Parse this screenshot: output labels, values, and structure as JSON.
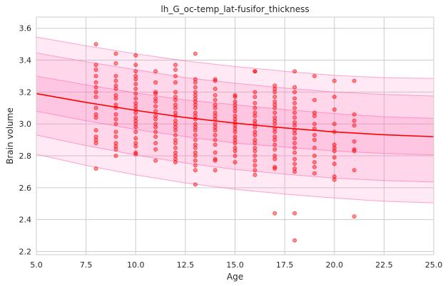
{
  "chart_data": {
    "type": "scatter",
    "title": "lh_G_oc-temp_lat-fusifor_thickness",
    "xlabel": "Age",
    "ylabel": "Brain volume",
    "xlim": [
      5.0,
      25.0
    ],
    "ylim": [
      2.18,
      3.67
    ],
    "xticks": [
      5.0,
      7.5,
      10.0,
      12.5,
      15.0,
      17.5,
      20.0,
      22.5,
      25.0
    ],
    "xtick_labels": [
      "5.0",
      "7.5",
      "10.0",
      "12.5",
      "15.0",
      "17.5",
      "20.0",
      "22.5",
      "25.0"
    ],
    "yticks": [
      2.2,
      2.4,
      2.6,
      2.8,
      3.0,
      3.2,
      3.4,
      3.6
    ],
    "ytick_labels": [
      "2.2",
      "2.4",
      "2.6",
      "2.8",
      "3.0",
      "3.2",
      "3.4",
      "3.6"
    ],
    "grid": true,
    "colors": {
      "points": "#ff0000",
      "trend": "#ff0000",
      "band_fill": "#ff69b4",
      "band_edge": "#ff69b4",
      "background": "#ffffff",
      "grid": "#cccccc"
    },
    "trend": {
      "x": [
        5,
        7.5,
        10,
        12.5,
        15,
        17.5,
        20,
        22.5,
        25
      ],
      "y": [
        3.19,
        3.135,
        3.085,
        3.04,
        3.005,
        2.975,
        2.95,
        2.932,
        2.92
      ]
    },
    "bands": [
      {
        "level": "outer",
        "lower": [
          2.81,
          2.74,
          2.68,
          2.63,
          2.59,
          2.56,
          2.535,
          2.515,
          2.505
        ],
        "upper": [
          3.545,
          3.49,
          3.44,
          3.395,
          3.36,
          3.33,
          3.305,
          3.29,
          3.285
        ]
      },
      {
        "level": "middle",
        "lower": [
          2.93,
          2.865,
          2.805,
          2.755,
          2.715,
          2.685,
          2.66,
          2.645,
          2.635
        ],
        "upper": [
          3.445,
          3.39,
          3.34,
          3.29,
          3.255,
          3.225,
          3.2,
          3.185,
          3.175
        ]
      },
      {
        "level": "inner",
        "lower": [
          3.08,
          3.02,
          2.965,
          2.92,
          2.88,
          2.855,
          2.83,
          2.815,
          2.805
        ],
        "upper": [
          3.3,
          3.245,
          3.195,
          3.15,
          3.12,
          3.09,
          3.065,
          3.045,
          3.035
        ]
      }
    ],
    "points": [
      [
        8,
        3.5
      ],
      [
        8,
        3.37
      ],
      [
        8,
        3.34
      ],
      [
        8,
        3.3
      ],
      [
        8,
        3.26
      ],
      [
        8,
        3.23
      ],
      [
        8,
        3.2
      ],
      [
        8,
        3.17
      ],
      [
        8,
        3.1
      ],
      [
        8,
        3.06
      ],
      [
        8,
        3.04
      ],
      [
        8,
        2.96
      ],
      [
        8,
        2.92
      ],
      [
        8,
        2.9
      ],
      [
        8,
        2.88
      ],
      [
        8,
        2.72
      ],
      [
        9,
        3.44
      ],
      [
        9,
        3.38
      ],
      [
        9,
        3.3
      ],
      [
        9,
        3.27
      ],
      [
        9,
        3.24
      ],
      [
        9,
        3.22
      ],
      [
        9,
        3.18
      ],
      [
        9,
        3.16
      ],
      [
        9,
        3.12
      ],
      [
        9,
        3.1
      ],
      [
        9,
        3.06
      ],
      [
        9,
        3.03
      ],
      [
        9,
        3.0
      ],
      [
        9,
        2.95
      ],
      [
        9,
        2.92
      ],
      [
        9,
        2.88
      ],
      [
        9,
        2.86
      ],
      [
        9,
        2.84
      ],
      [
        9,
        2.8
      ],
      [
        10,
        3.43
      ],
      [
        10,
        3.37
      ],
      [
        10,
        3.33
      ],
      [
        10,
        3.3
      ],
      [
        10,
        3.28
      ],
      [
        10,
        3.25
      ],
      [
        10,
        3.22
      ],
      [
        10,
        3.19
      ],
      [
        10,
        3.16
      ],
      [
        10,
        3.13
      ],
      [
        10,
        3.11
      ],
      [
        10,
        3.09
      ],
      [
        10,
        3.07
      ],
      [
        10,
        3.04
      ],
      [
        10,
        3.02
      ],
      [
        10,
        3.0
      ],
      [
        10,
        2.98
      ],
      [
        10,
        2.95
      ],
      [
        10,
        2.91
      ],
      [
        10,
        2.88
      ],
      [
        10,
        2.86
      ],
      [
        10,
        2.82
      ],
      [
        10,
        2.81
      ],
      [
        11,
        3.33
      ],
      [
        11,
        3.26
      ],
      [
        11,
        3.2
      ],
      [
        11,
        3.19
      ],
      [
        11,
        3.16
      ],
      [
        11,
        3.14
      ],
      [
        11,
        3.11
      ],
      [
        11,
        3.08
      ],
      [
        11,
        3.05
      ],
      [
        11,
        3.03
      ],
      [
        11,
        3.0
      ],
      [
        11,
        2.98
      ],
      [
        11,
        2.95
      ],
      [
        11,
        2.92
      ],
      [
        11,
        2.88
      ],
      [
        11,
        2.84
      ],
      [
        11,
        2.77
      ],
      [
        12,
        3.37
      ],
      [
        12,
        3.34
      ],
      [
        12,
        3.3
      ],
      [
        12,
        3.26
      ],
      [
        12,
        3.2
      ],
      [
        12,
        3.17
      ],
      [
        12,
        3.15
      ],
      [
        12,
        3.12
      ],
      [
        12,
        3.1
      ],
      [
        12,
        3.07
      ],
      [
        12,
        3.05
      ],
      [
        12,
        3.02
      ],
      [
        12,
        3.0
      ],
      [
        12,
        2.98
      ],
      [
        12,
        2.96
      ],
      [
        12,
        2.93
      ],
      [
        12,
        2.9
      ],
      [
        12,
        2.88
      ],
      [
        12,
        2.85
      ],
      [
        12,
        2.82
      ],
      [
        12,
        2.8
      ],
      [
        12,
        2.78
      ],
      [
        12,
        2.76
      ],
      [
        13,
        3.44
      ],
      [
        13,
        3.28
      ],
      [
        13,
        3.26
      ],
      [
        13,
        3.23
      ],
      [
        13,
        3.2
      ],
      [
        13,
        3.18
      ],
      [
        13,
        3.16
      ],
      [
        13,
        3.14
      ],
      [
        13,
        3.12
      ],
      [
        13,
        3.1
      ],
      [
        13,
        3.07
      ],
      [
        13,
        3.05
      ],
      [
        13,
        3.03
      ],
      [
        13,
        3.0
      ],
      [
        13,
        2.98
      ],
      [
        13,
        2.96
      ],
      [
        13,
        2.93
      ],
      [
        13,
        2.9
      ],
      [
        13,
        2.87
      ],
      [
        13,
        2.85
      ],
      [
        13,
        2.82
      ],
      [
        13,
        2.8
      ],
      [
        13,
        2.77
      ],
      [
        13,
        2.74
      ],
      [
        13,
        2.71
      ],
      [
        13,
        2.62
      ],
      [
        14,
        3.28
      ],
      [
        14,
        3.27
      ],
      [
        14,
        3.22
      ],
      [
        14,
        3.18
      ],
      [
        14,
        3.15
      ],
      [
        14,
        3.12
      ],
      [
        14,
        3.1
      ],
      [
        14,
        3.07
      ],
      [
        14,
        3.05
      ],
      [
        14,
        3.03
      ],
      [
        14,
        3.0
      ],
      [
        14,
        2.98
      ],
      [
        14,
        2.96
      ],
      [
        14,
        2.93
      ],
      [
        14,
        2.9
      ],
      [
        14,
        2.87
      ],
      [
        14,
        2.82
      ],
      [
        14,
        2.78
      ],
      [
        14,
        2.77
      ],
      [
        14,
        2.71
      ],
      [
        15,
        3.18
      ],
      [
        15,
        3.17
      ],
      [
        15,
        3.14
      ],
      [
        15,
        3.12
      ],
      [
        15,
        3.1
      ],
      [
        15,
        3.08
      ],
      [
        15,
        3.05
      ],
      [
        15,
        3.03
      ],
      [
        15,
        3.01
      ],
      [
        15,
        2.99
      ],
      [
        15,
        2.97
      ],
      [
        15,
        2.95
      ],
      [
        15,
        2.92
      ],
      [
        15,
        2.9
      ],
      [
        15,
        2.88
      ],
      [
        15,
        2.85
      ],
      [
        15,
        2.83
      ],
      [
        15,
        2.8
      ],
      [
        15,
        2.76
      ],
      [
        16,
        3.33
      ],
      [
        16,
        3.33
      ],
      [
        16,
        3.2
      ],
      [
        16,
        3.17
      ],
      [
        16,
        3.13
      ],
      [
        16,
        3.1
      ],
      [
        16,
        3.07
      ],
      [
        16,
        3.05
      ],
      [
        16,
        3.02
      ],
      [
        16,
        3.0
      ],
      [
        16,
        2.98
      ],
      [
        16,
        2.95
      ],
      [
        16,
        2.93
      ],
      [
        16,
        2.9
      ],
      [
        16,
        2.88
      ],
      [
        16,
        2.85
      ],
      [
        16,
        2.83
      ],
      [
        16,
        2.8
      ],
      [
        16,
        2.77
      ],
      [
        16,
        2.74
      ],
      [
        16,
        2.71
      ],
      [
        16,
        2.68
      ],
      [
        17,
        3.24
      ],
      [
        17,
        3.22
      ],
      [
        17,
        3.2
      ],
      [
        17,
        3.17
      ],
      [
        17,
        3.14
      ],
      [
        17,
        3.12
      ],
      [
        17,
        3.1
      ],
      [
        17,
        3.07
      ],
      [
        17,
        3.04
      ],
      [
        17,
        3.02
      ],
      [
        17,
        3.0
      ],
      [
        17,
        2.97
      ],
      [
        17,
        2.95
      ],
      [
        17,
        2.92
      ],
      [
        17,
        2.9
      ],
      [
        17,
        2.87
      ],
      [
        17,
        2.84
      ],
      [
        17,
        2.8
      ],
      [
        17,
        2.78
      ],
      [
        17,
        2.73
      ],
      [
        17,
        2.72
      ],
      [
        17,
        2.44
      ],
      [
        18,
        3.33
      ],
      [
        18,
        3.23
      ],
      [
        18,
        3.2
      ],
      [
        18,
        3.16
      ],
      [
        18,
        3.13
      ],
      [
        18,
        3.1
      ],
      [
        18,
        3.07
      ],
      [
        18,
        3.04
      ],
      [
        18,
        3.01
      ],
      [
        18,
        2.99
      ],
      [
        18,
        2.96
      ],
      [
        18,
        2.94
      ],
      [
        18,
        2.91
      ],
      [
        18,
        2.88
      ],
      [
        18,
        2.85
      ],
      [
        18,
        2.82
      ],
      [
        18,
        2.78
      ],
      [
        18,
        2.75
      ],
      [
        18,
        2.72
      ],
      [
        18,
        2.7
      ],
      [
        18,
        2.44
      ],
      [
        18,
        2.27
      ],
      [
        19,
        3.3
      ],
      [
        19,
        3.15
      ],
      [
        19,
        3.07
      ],
      [
        19,
        3.05
      ],
      [
        19,
        3.0
      ],
      [
        19,
        2.97
      ],
      [
        19,
        2.93
      ],
      [
        19,
        2.9
      ],
      [
        19,
        2.85
      ],
      [
        19,
        2.8
      ],
      [
        19,
        2.76
      ],
      [
        19,
        2.73
      ],
      [
        19,
        2.69
      ],
      [
        20,
        3.27
      ],
      [
        20,
        3.17
      ],
      [
        20,
        3.09
      ],
      [
        20,
        3.0
      ],
      [
        20,
        2.95
      ],
      [
        20,
        2.87
      ],
      [
        20,
        2.85
      ],
      [
        20,
        2.83
      ],
      [
        20,
        2.79
      ],
      [
        20,
        2.75
      ],
      [
        20,
        2.67
      ],
      [
        20,
        2.65
      ],
      [
        21,
        3.27
      ],
      [
        21,
        3.06
      ],
      [
        21,
        3.02
      ],
      [
        21,
        2.99
      ],
      [
        21,
        2.89
      ],
      [
        21,
        2.84
      ],
      [
        21,
        2.83
      ],
      [
        21,
        2.71
      ],
      [
        21,
        2.42
      ]
    ]
  }
}
